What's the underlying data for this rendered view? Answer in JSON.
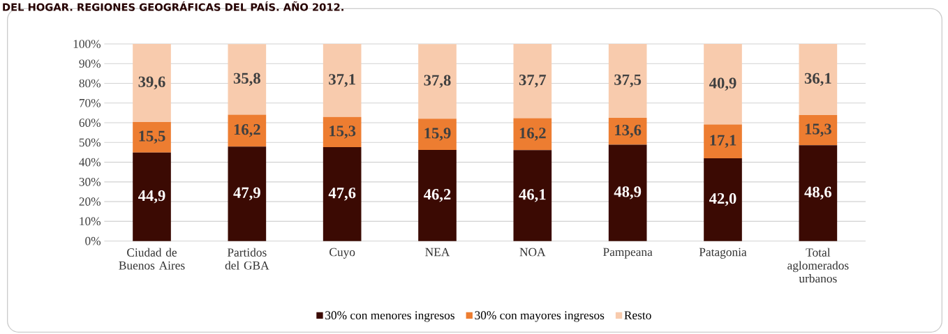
{
  "chart_data": {
    "type": "bar",
    "stacked": true,
    "title": "DEL HOGAR. REGIONES GEOGRÁFICAS DEL PAÍS. AÑO 2012.",
    "categories": [
      "Ciudad de Buenos Aires",
      "Partidos del GBA",
      "Cuyo",
      "NEA",
      "NOA",
      "Pampeana",
      "Patagonia",
      "Total aglomerados urbanos"
    ],
    "series": [
      {
        "name": "30% con menores ingresos",
        "color": "#3b0a03",
        "values": [
          44.9,
          47.9,
          47.6,
          46.2,
          46.1,
          48.9,
          42.0,
          48.6
        ],
        "value_labels": [
          "44,9",
          "47,9",
          "47,6",
          "46,2",
          "46,1",
          "48,9",
          "42,0",
          "48,6"
        ]
      },
      {
        "name": "30% con mayores ingresos",
        "color": "#ed7d31",
        "values": [
          15.5,
          16.2,
          15.3,
          15.9,
          16.2,
          13.6,
          17.1,
          15.3
        ],
        "value_labels": [
          "15,5",
          "16,2",
          "15,3",
          "15,9",
          "16,2",
          "13,6",
          "17,1",
          "15,3"
        ]
      },
      {
        "name": "Resto",
        "color": "#f8cbad",
        "values": [
          39.6,
          35.8,
          37.1,
          37.8,
          37.7,
          37.5,
          40.9,
          36.1
        ],
        "value_labels": [
          "39,6",
          "35,8",
          "37,1",
          "37,8",
          "37,7",
          "37,5",
          "40,9",
          "36,1"
        ]
      }
    ],
    "ylim": [
      0,
      100
    ],
    "yticks": [
      {
        "value": 0,
        "label": "0%"
      },
      {
        "value": 10,
        "label": "10%"
      },
      {
        "value": 20,
        "label": "20%"
      },
      {
        "value": 30,
        "label": "30%"
      },
      {
        "value": 40,
        "label": "40%"
      },
      {
        "value": 50,
        "label": "50%"
      },
      {
        "value": 60,
        "label": "60%"
      },
      {
        "value": 70,
        "label": "70%"
      },
      {
        "value": 80,
        "label": "80%"
      },
      {
        "value": 90,
        "label": "90%"
      },
      {
        "value": 100,
        "label": "100%"
      }
    ],
    "grid": "y",
    "legend": "bottom"
  }
}
